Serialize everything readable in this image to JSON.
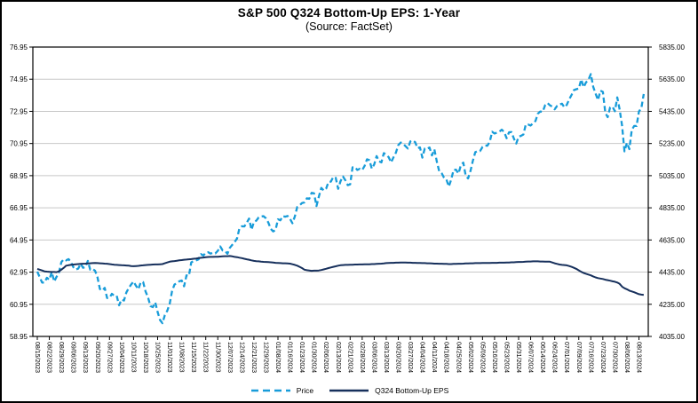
{
  "chart_data": {
    "type": "line",
    "title": "S&P 500 Q324 Bottom-Up EPS: 1-Year",
    "subtitle": "(Source: FactSet)",
    "grid": true,
    "grid_color": "#c8c8c8",
    "axis_color": "#000000",
    "legend_position": "bottom",
    "left_axis": {
      "min": 58.95,
      "max": 76.95,
      "ticks": [
        "76.95",
        "74.95",
        "72.95",
        "70.95",
        "68.95",
        "66.95",
        "64.95",
        "62.95",
        "60.95",
        "58.95"
      ]
    },
    "right_axis": {
      "min": 4035,
      "max": 5835,
      "ticks": [
        "5835.00",
        "5635.00",
        "5435.00",
        "5235.00",
        "5035.00",
        "4835.00",
        "4635.00",
        "4435.00",
        "4235.00",
        "4035.00"
      ]
    },
    "x_tick_labels": [
      "08/15/2023",
      "08/22/2023",
      "08/29/2023",
      "09/06/2023",
      "09/13/2023",
      "09/20/2023",
      "09/27/2023",
      "10/04/2023",
      "10/11/2023",
      "10/18/2023",
      "10/25/2023",
      "11/01/2023",
      "11/08/2023",
      "11/15/2023",
      "11/22/2023",
      "11/30/2023",
      "12/07/2023",
      "12/14/2023",
      "12/21/2023",
      "12/29/2023",
      "01/08/2024",
      "01/16/2024",
      "01/23/2024",
      "01/30/2024",
      "02/06/2024",
      "02/13/2024",
      "02/21/2024",
      "02/28/2024",
      "03/06/2024",
      "03/13/2024",
      "03/20/2024",
      "03/27/2024",
      "04/04/2024",
      "04/11/2024",
      "04/18/2024",
      "04/25/2024",
      "05/02/2024",
      "05/09/2024",
      "05/16/2024",
      "05/23/2024",
      "05/31/2024",
      "06/07/2024",
      "06/14/2024",
      "06/24/2024",
      "07/01/2024",
      "07/09/2024",
      "07/16/2024",
      "07/23/2024",
      "07/30/2024",
      "08/06/2024",
      "08/13/2024"
    ],
    "series": [
      {
        "id": "price",
        "name": "Price",
        "axis": "right",
        "color": "#189CD9",
        "dash": "6 3.5",
        "width": 2.3,
        "values": [
          4438,
          4404,
          4370,
          4370,
          4400,
          4387,
          4436,
          4376,
          4406,
          4433,
          4497,
          4515,
          4508,
          4516,
          4497,
          4465,
          4451,
          4457,
          4487,
          4462,
          4467,
          4505,
          4450,
          4454,
          4444,
          4402,
          4330,
          4320,
          4337,
          4274,
          4275,
          4300,
          4288,
          4288,
          4229,
          4264,
          4258,
          4309,
          4336,
          4358,
          4377,
          4350,
          4328,
          4373,
          4373,
          4315,
          4278,
          4224,
          4217,
          4247,
          4187,
          4137,
          4117,
          4167,
          4194,
          4238,
          4318,
          4358,
          4366,
          4378,
          4383,
          4347,
          4415,
          4412,
          4496,
          4503,
          4508,
          4514,
          4547,
          4538,
          4556,
          4559,
          4550,
          4555,
          4551,
          4568,
          4595,
          4570,
          4567,
          4549,
          4586,
          4604,
          4622,
          4644,
          4707,
          4720,
          4719,
          4741,
          4768,
          4698,
          4747,
          4755,
          4775,
          4781,
          4783,
          4770,
          4743,
          4704,
          4688,
          4697,
          4764,
          4757,
          4783,
          4780,
          4784,
          4766,
          4739,
          4781,
          4840,
          4850,
          4865,
          4869,
          4894,
          4891,
          4928,
          4925,
          4846,
          4906,
          4959,
          4943,
          4954,
          4995,
          4998,
          5027,
          5022,
          4953,
          5001,
          5030,
          5006,
          4976,
          4981,
          5087,
          5089,
          5070,
          5078,
          5070,
          5096,
          5137,
          5131,
          5078,
          5105,
          5157,
          5124,
          5118,
          5175,
          5165,
          5150,
          5117,
          5149,
          5178,
          5225,
          5241,
          5234,
          5218,
          5204,
          5248,
          5254,
          5243,
          5206,
          5211,
          5147,
          5204,
          5202,
          5210,
          5161,
          5199,
          5123,
          5062,
          5051,
          5022,
          5011,
          4967,
          5011,
          5071,
          5072,
          5048,
          5100,
          5116,
          5036,
          5018,
          5064,
          5128,
          5181,
          5188,
          5188,
          5214,
          5223,
          5221,
          5246,
          5308,
          5297,
          5303,
          5308,
          5321,
          5307,
          5268,
          5305,
          5306,
          5267,
          5235,
          5277,
          5283,
          5291,
          5354,
          5353,
          5347,
          5361,
          5375,
          5421,
          5434,
          5432,
          5473,
          5487,
          5473,
          5465,
          5448,
          5469,
          5478,
          5483,
          5460,
          5475,
          5509,
          5537,
          5567,
          5573,
          5577,
          5634,
          5585,
          5615,
          5631,
          5667,
          5588,
          5545,
          5505,
          5564,
          5556,
          5427,
          5399,
          5459,
          5464,
          5436,
          5522,
          5446,
          5346,
          5186,
          5240,
          5200,
          5319,
          5344,
          5344,
          5434,
          5455,
          5543
        ]
      },
      {
        "id": "eps",
        "name": "Q324 Bottom-Up EPS",
        "axis": "left",
        "color": "#17305C",
        "dash": null,
        "width": 2,
        "values": [
          63.15,
          63.1,
          63.05,
          63.0,
          62.98,
          62.97,
          62.96,
          62.96,
          62.95,
          63.0,
          63.1,
          63.22,
          63.35,
          63.38,
          63.4,
          63.42,
          63.44,
          63.45,
          63.46,
          63.47,
          63.48,
          63.49,
          63.5,
          63.51,
          63.52,
          63.51,
          63.5,
          63.49,
          63.48,
          63.47,
          63.45,
          63.43,
          63.41,
          63.4,
          63.39,
          63.38,
          63.37,
          63.36,
          63.35,
          63.33,
          63.32,
          63.33,
          63.34,
          63.36,
          63.37,
          63.39,
          63.4,
          63.41,
          63.42,
          63.43,
          63.43,
          63.44,
          63.45,
          63.5,
          63.55,
          63.6,
          63.62,
          63.64,
          63.66,
          63.68,
          63.7,
          63.72,
          63.73,
          63.75,
          63.76,
          63.78,
          63.8,
          63.82,
          63.84,
          63.86,
          63.88,
          63.89,
          63.9,
          63.9,
          63.91,
          63.91,
          63.92,
          63.93,
          63.94,
          63.94,
          63.95,
          63.93,
          63.9,
          63.88,
          63.85,
          63.82,
          63.78,
          63.75,
          63.72,
          63.68,
          63.65,
          63.63,
          63.62,
          63.6,
          63.59,
          63.58,
          63.57,
          63.56,
          63.55,
          63.53,
          63.52,
          63.51,
          63.5,
          63.5,
          63.49,
          63.48,
          63.44,
          63.4,
          63.35,
          63.28,
          63.2,
          63.1,
          63.07,
          63.05,
          63.03,
          63.04,
          63.04,
          63.05,
          63.08,
          63.12,
          63.16,
          63.2,
          63.24,
          63.28,
          63.31,
          63.35,
          63.38,
          63.39,
          63.4,
          63.4,
          63.41,
          63.41,
          63.42,
          63.42,
          63.43,
          63.43,
          63.44,
          63.44,
          63.44,
          63.45,
          63.45,
          63.46,
          63.47,
          63.48,
          63.49,
          63.51,
          63.52,
          63.53,
          63.53,
          63.54,
          63.54,
          63.55,
          63.55,
          63.55,
          63.54,
          63.54,
          63.53,
          63.53,
          63.52,
          63.52,
          63.51,
          63.51,
          63.5,
          63.5,
          63.49,
          63.48,
          63.48,
          63.47,
          63.47,
          63.46,
          63.46,
          63.45,
          63.45,
          63.46,
          63.46,
          63.47,
          63.47,
          63.48,
          63.49,
          63.49,
          63.5,
          63.5,
          63.51,
          63.51,
          63.51,
          63.52,
          63.52,
          63.52,
          63.52,
          63.53,
          63.53,
          63.53,
          63.54,
          63.54,
          63.54,
          63.55,
          63.55,
          63.56,
          63.56,
          63.57,
          63.58,
          63.58,
          63.59,
          63.6,
          63.61,
          63.61,
          63.62,
          63.62,
          63.62,
          63.61,
          63.61,
          63.6,
          63.6,
          63.6,
          63.55,
          63.5,
          63.46,
          63.42,
          63.4,
          63.39,
          63.37,
          63.33,
          63.28,
          63.22,
          63.15,
          63.06,
          62.97,
          62.9,
          62.85,
          62.8,
          62.75,
          62.68,
          62.62,
          62.58,
          62.55,
          62.52,
          62.48,
          62.45,
          62.42,
          62.38,
          62.35,
          62.3,
          62.22,
          62.05,
          61.95,
          61.88,
          61.8,
          61.75,
          61.7,
          61.64,
          61.58,
          61.55,
          61.53
        ]
      }
    ]
  }
}
